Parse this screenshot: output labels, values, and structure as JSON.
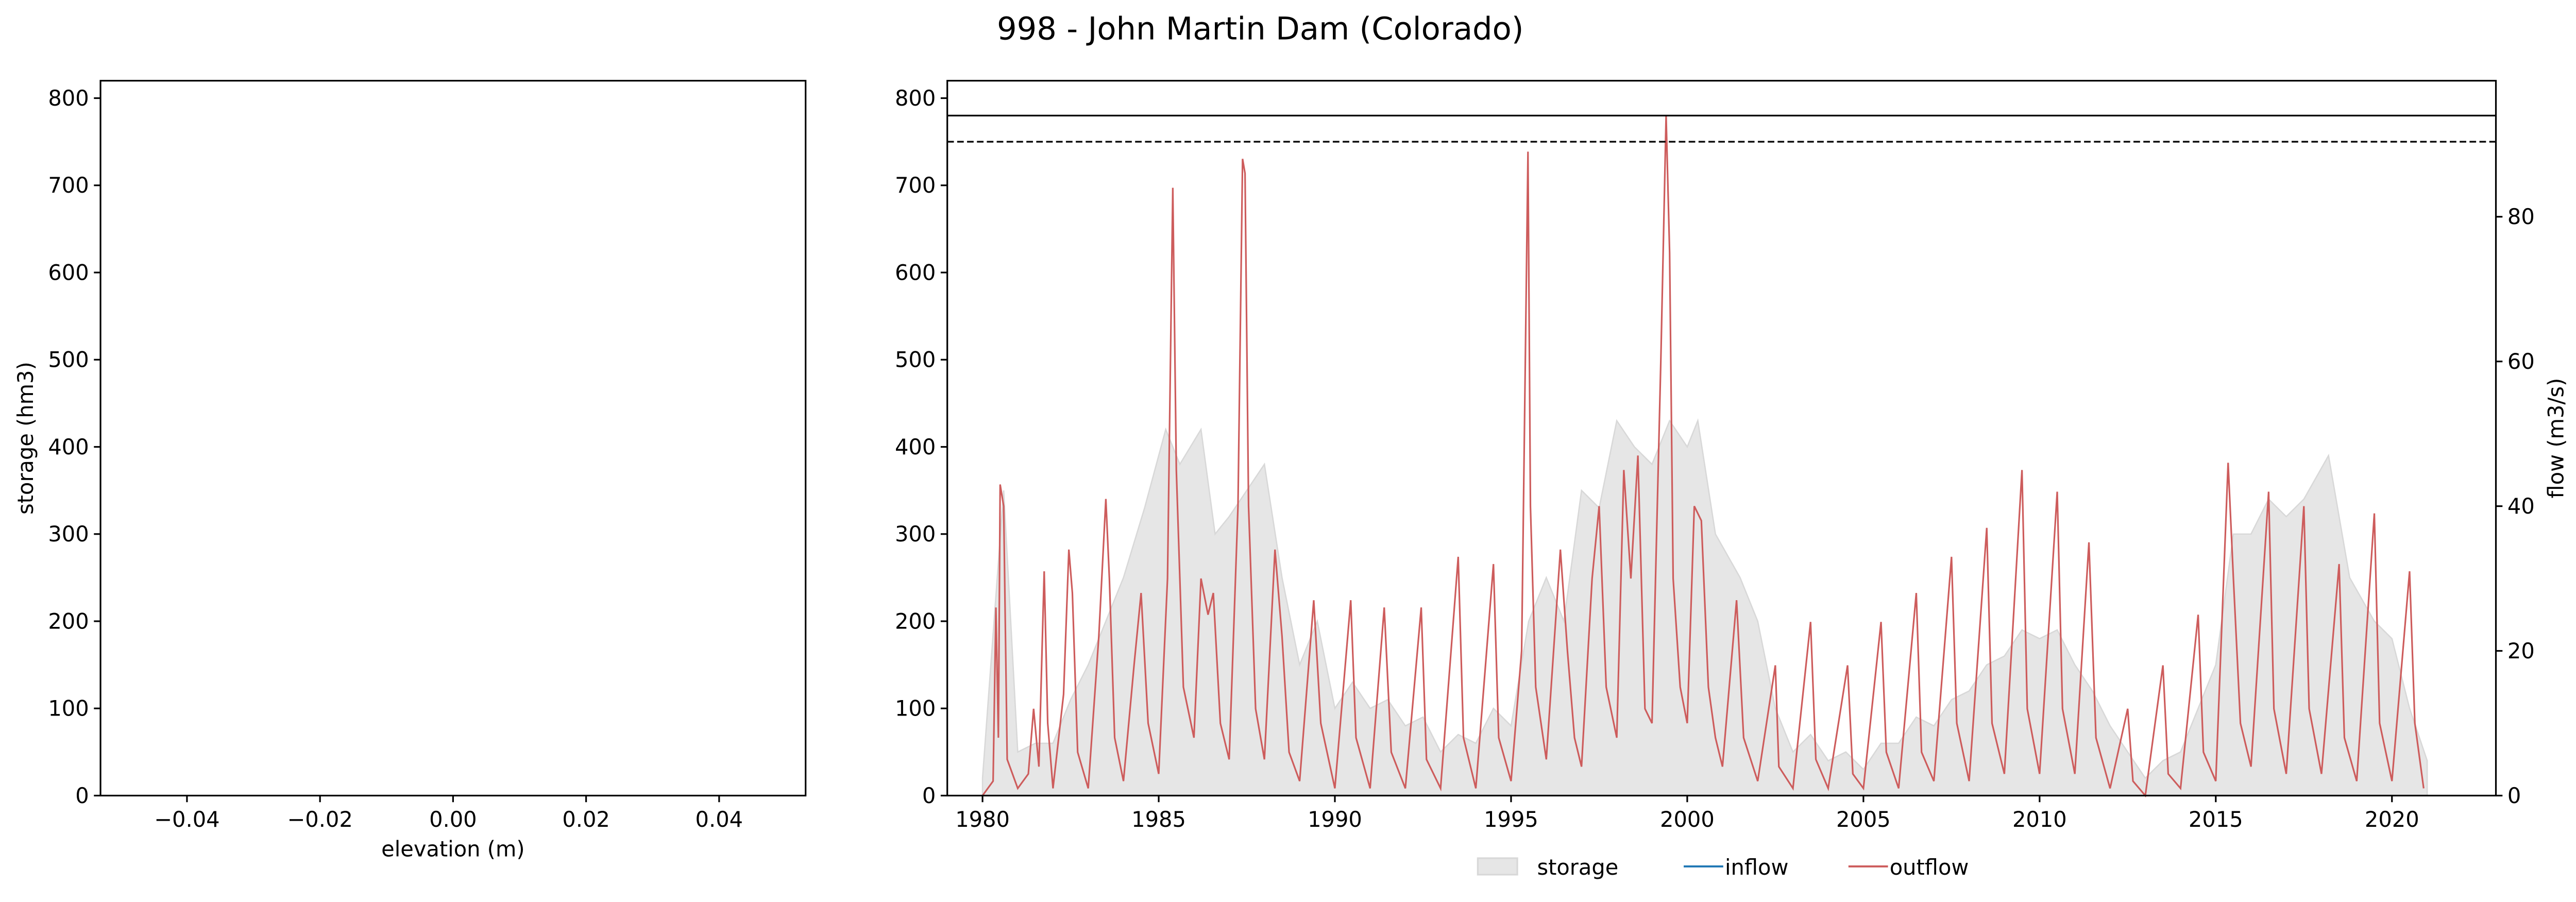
{
  "title": "998 - John Martin Dam (Colorado)",
  "chart_data": [
    {
      "type": "scatter",
      "xlabel": "elevation (m)",
      "ylabel": "storage (hm3)",
      "xlim": [
        -0.053,
        0.053
      ],
      "xticks": [
        {
          "value": -0.04,
          "label": "−0.04"
        },
        {
          "value": -0.02,
          "label": "−0.02"
        },
        {
          "value": 0,
          "label": "0.00"
        },
        {
          "value": 0.02,
          "label": "0.02"
        },
        {
          "value": 0.04,
          "label": "0.04"
        }
      ],
      "ylim": [
        0,
        820
      ],
      "yticks": [
        0,
        100,
        200,
        300,
        400,
        500,
        600,
        700,
        800
      ],
      "series": []
    },
    {
      "type": "line",
      "y2label": "flow (m3/s)",
      "xlim": [
        1979.0,
        2022.95
      ],
      "xticks": [
        1980,
        1985,
        1990,
        1995,
        2000,
        2005,
        2010,
        2015,
        2020
      ],
      "ylim": [
        0,
        820
      ],
      "yticks": [
        0,
        100,
        200,
        300,
        400,
        500,
        600,
        700,
        800
      ],
      "y2lim": [
        0,
        98.8
      ],
      "y2ticks": [
        0,
        20,
        40,
        60,
        80
      ],
      "hlines": [
        {
          "value": 780,
          "style": "solid"
        },
        {
          "value": 750,
          "style": "dashed"
        }
      ],
      "legend": "bottom",
      "series": [
        {
          "name": "storage",
          "kind": "area",
          "color": "#e6e6e6",
          "x": [
            1980.0,
            1980.6,
            1981.0,
            1981.5,
            1982.0,
            1982.5,
            1983.0,
            1983.5,
            1984.0,
            1984.6,
            1985.2,
            1985.6,
            1986.2,
            1986.6,
            1987.0,
            1987.5,
            1988.0,
            1988.5,
            1989.0,
            1989.5,
            1990.0,
            1990.5,
            1991.0,
            1991.5,
            1992.0,
            1992.5,
            1993.0,
            1993.5,
            1994.0,
            1994.5,
            1995.0,
            1995.5,
            1996.0,
            1996.5,
            1997.0,
            1997.5,
            1998.0,
            1998.5,
            1999.0,
            1999.5,
            2000.0,
            2000.3,
            2000.8,
            2001.5,
            2002.0,
            2002.5,
            2003.0,
            2003.5,
            2004.0,
            2004.5,
            2005.0,
            2005.5,
            2006.0,
            2006.5,
            2007.0,
            2007.5,
            2008.0,
            2008.5,
            2009.0,
            2009.5,
            2010.0,
            2010.5,
            2011.0,
            2011.5,
            2012.0,
            2012.5,
            2013.0,
            2013.5,
            2014.0,
            2014.5,
            2015.0,
            2015.5,
            2016.0,
            2016.5,
            2017.0,
            2017.5,
            2018.2,
            2018.8,
            2019.5,
            2020.0,
            2020.5,
            2021.0
          ],
          "values": [
            20,
            350,
            50,
            60,
            60,
            110,
            150,
            200,
            250,
            330,
            420,
            380,
            420,
            300,
            320,
            350,
            380,
            250,
            150,
            200,
            100,
            130,
            100,
            110,
            80,
            90,
            50,
            70,
            60,
            100,
            80,
            200,
            250,
            200,
            350,
            330,
            430,
            400,
            380,
            430,
            400,
            430,
            300,
            250,
            200,
            100,
            50,
            70,
            40,
            50,
            30,
            60,
            60,
            90,
            80,
            110,
            120,
            150,
            160,
            190,
            180,
            190,
            150,
            120,
            80,
            50,
            20,
            40,
            50,
            100,
            150,
            300,
            300,
            340,
            320,
            340,
            390,
            250,
            200,
            180,
            100,
            40
          ]
        },
        {
          "name": "inflow",
          "kind": "line",
          "color": "#1f77b4",
          "axis": "y2",
          "x": [],
          "values": []
        },
        {
          "name": "outflow",
          "kind": "line",
          "color": "#cd5c5c",
          "axis": "y2",
          "x": [
            1980.0,
            1980.3,
            1980.38,
            1980.45,
            1980.5,
            1980.6,
            1980.7,
            1981.0,
            1981.3,
            1981.45,
            1981.6,
            1981.75,
            1981.85,
            1982.0,
            1982.3,
            1982.45,
            1982.55,
            1982.7,
            1983.0,
            1983.3,
            1983.5,
            1983.6,
            1983.75,
            1984.0,
            1984.3,
            1984.5,
            1984.7,
            1985.0,
            1985.25,
            1985.4,
            1985.5,
            1985.7,
            1986.0,
            1986.2,
            1986.4,
            1986.55,
            1986.75,
            1987.0,
            1987.25,
            1987.38,
            1987.45,
            1987.55,
            1987.75,
            1988.0,
            1988.3,
            1988.5,
            1988.7,
            1989.0,
            1989.4,
            1989.6,
            1990.0,
            1990.45,
            1990.6,
            1991.0,
            1991.4,
            1991.6,
            1992.0,
            1992.45,
            1992.6,
            1993.0,
            1993.5,
            1993.65,
            1994.0,
            1994.5,
            1994.65,
            1995.0,
            1995.3,
            1995.48,
            1995.55,
            1995.7,
            1996.0,
            1996.4,
            1996.6,
            1996.8,
            1997.0,
            1997.3,
            1997.5,
            1997.7,
            1998.0,
            1998.2,
            1998.4,
            1998.6,
            1998.8,
            1999.0,
            1999.25,
            1999.4,
            1999.5,
            1999.6,
            1999.8,
            2000.0,
            2000.2,
            2000.4,
            2000.6,
            2000.8,
            2001.0,
            2001.4,
            2001.6,
            2002.0,
            2002.5,
            2002.6,
            2003.0,
            2003.5,
            2003.65,
            2004.0,
            2004.55,
            2004.7,
            2005.0,
            2005.5,
            2005.65,
            2006.0,
            2006.5,
            2006.65,
            2007.0,
            2007.5,
            2007.65,
            2008.0,
            2008.5,
            2008.65,
            2009.0,
            2009.5,
            2009.65,
            2010.0,
            2010.5,
            2010.65,
            2011.0,
            2011.4,
            2011.6,
            2012.0,
            2012.5,
            2012.65,
            2013.0,
            2013.5,
            2013.65,
            2014.0,
            2014.5,
            2014.65,
            2015.0,
            2015.35,
            2015.5,
            2015.7,
            2016.0,
            2016.5,
            2016.65,
            2017.0,
            2017.5,
            2017.65,
            2018.0,
            2018.5,
            2018.65,
            2019.0,
            2019.5,
            2019.65,
            2020.0,
            2020.5,
            2020.65,
            2020.9
          ],
          "values": [
            0,
            2,
            26,
            8,
            43,
            40,
            5,
            1,
            3,
            12,
            4,
            31,
            10,
            1,
            14,
            34,
            28,
            6,
            1,
            22,
            41,
            30,
            8,
            2,
            18,
            28,
            10,
            3,
            30,
            84,
            45,
            15,
            8,
            30,
            25,
            28,
            10,
            5,
            40,
            88,
            86,
            40,
            12,
            5,
            34,
            22,
            6,
            2,
            27,
            10,
            1,
            27,
            8,
            1,
            26,
            6,
            1,
            26,
            5,
            1,
            33,
            8,
            1,
            32,
            8,
            2,
            20,
            89,
            40,
            15,
            5,
            34,
            20,
            8,
            4,
            30,
            40,
            15,
            8,
            45,
            30,
            47,
            12,
            10,
            60,
            94,
            75,
            30,
            15,
            10,
            40,
            38,
            15,
            8,
            4,
            27,
            8,
            2,
            18,
            4,
            1,
            24,
            5,
            1,
            18,
            3,
            1,
            24,
            6,
            1,
            28,
            6,
            2,
            33,
            10,
            2,
            37,
            10,
            3,
            45,
            12,
            3,
            42,
            12,
            3,
            35,
            8,
            1,
            12,
            2,
            0,
            18,
            3,
            1,
            25,
            6,
            2,
            46,
            30,
            10,
            4,
            42,
            12,
            3,
            40,
            12,
            3,
            32,
            8,
            2,
            39,
            10,
            2,
            31,
            10,
            1
          ]
        }
      ]
    }
  ]
}
